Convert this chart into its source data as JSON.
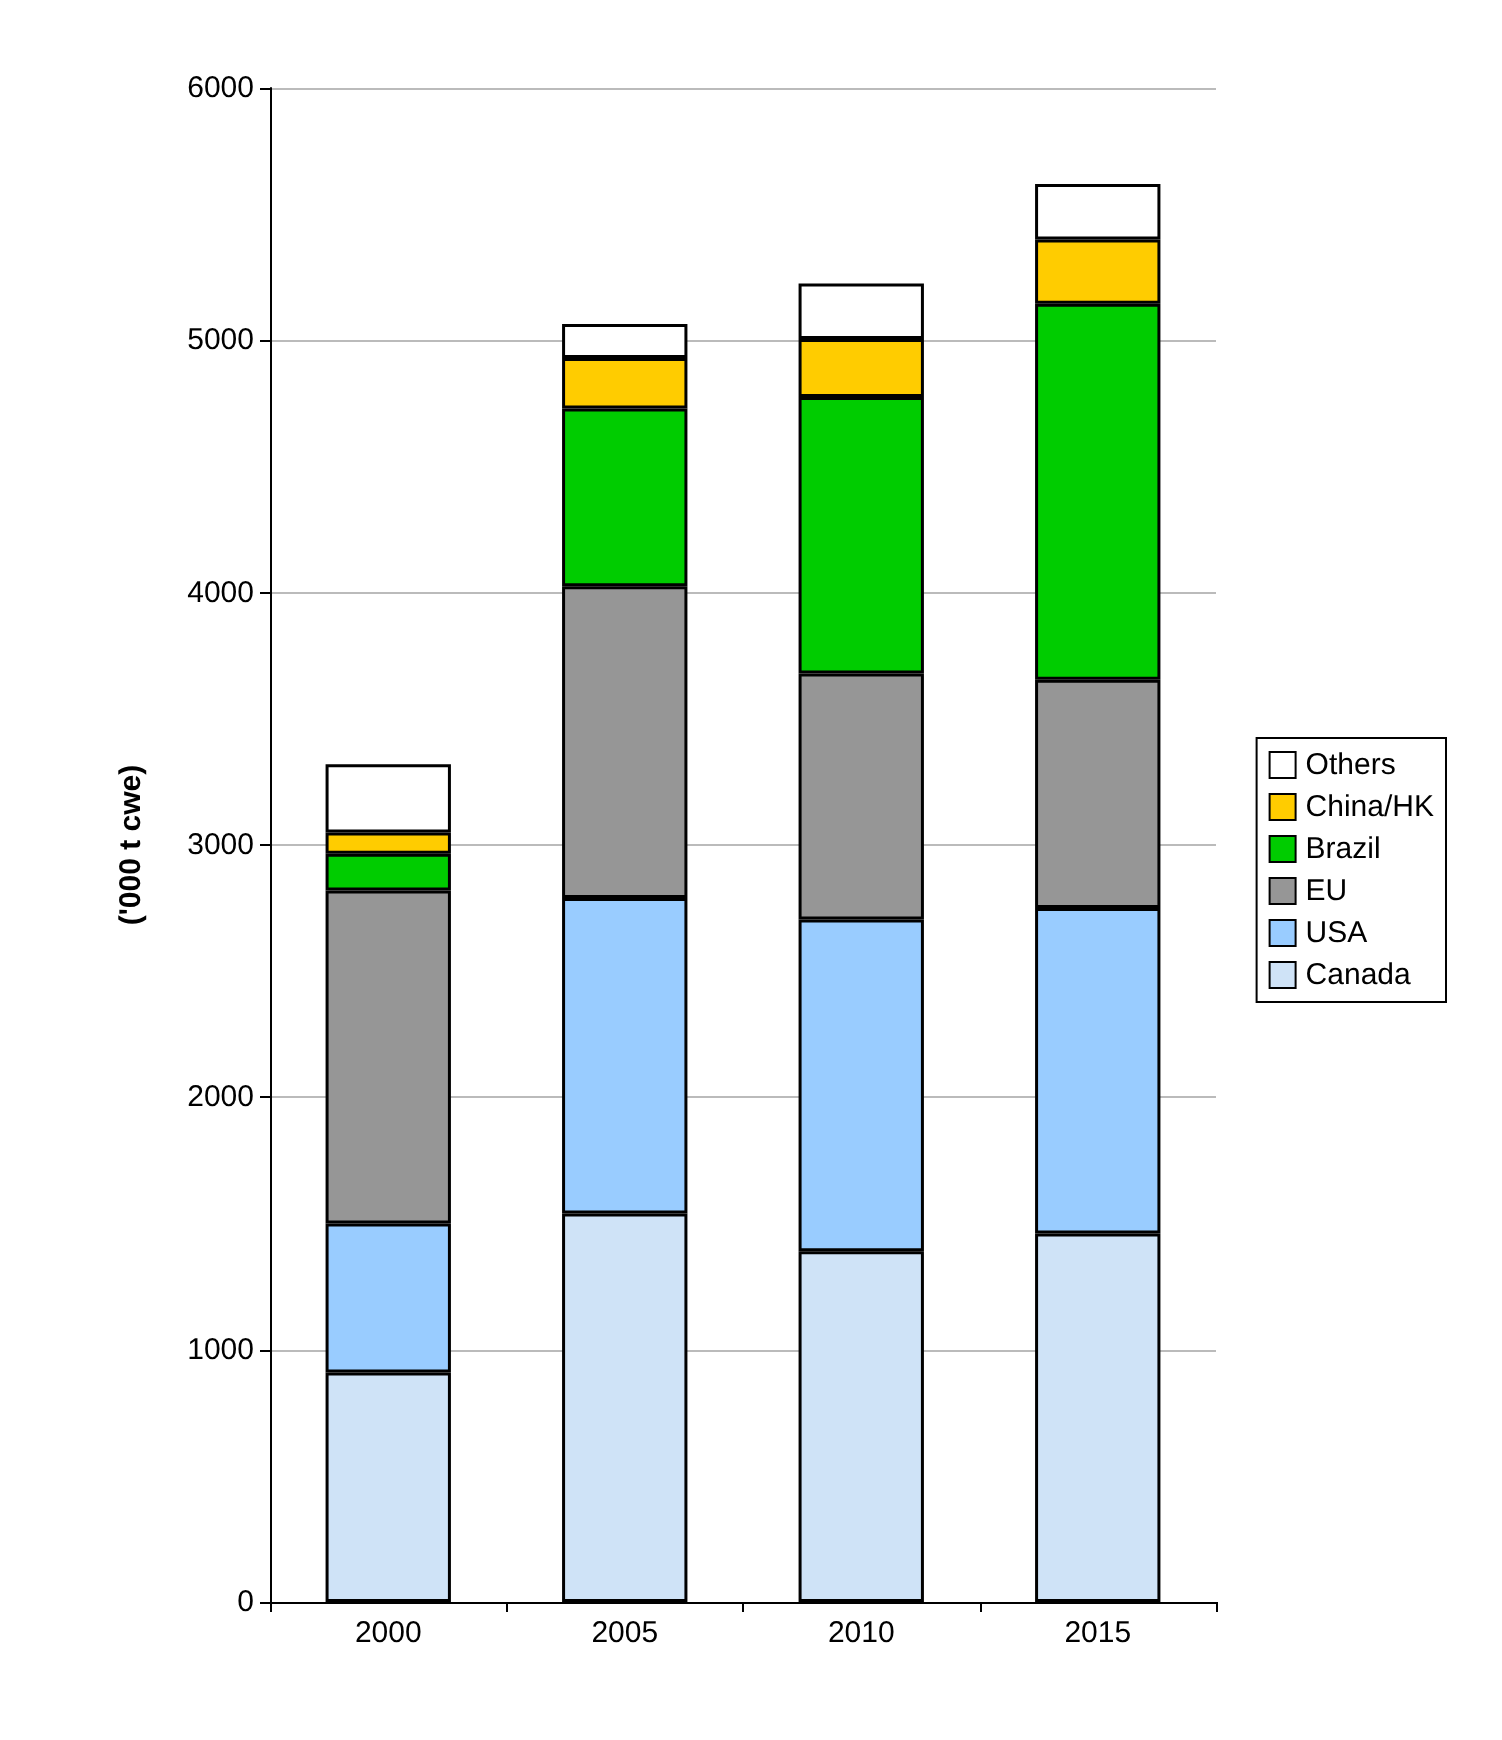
{
  "chart_data": {
    "type": "bar",
    "stacked": true,
    "ylabel": "('000 t cwe)",
    "categories": [
      "2000",
      "2005",
      "2010",
      "2015"
    ],
    "series": [
      {
        "name": "Canada",
        "color": "#cfe3f7",
        "values": [
          910,
          1540,
          1390,
          1460
        ]
      },
      {
        "name": "USA",
        "color": "#99ccff",
        "values": [
          590,
          1250,
          1315,
          1290
        ]
      },
      {
        "name": "EU",
        "color": "#969696",
        "values": [
          1320,
          1235,
          975,
          905
        ]
      },
      {
        "name": "Brazil",
        "color": "#00cc00",
        "values": [
          145,
          705,
          1095,
          1490
        ]
      },
      {
        "name": "China/HK",
        "color": "#ffcc00",
        "values": [
          85,
          200,
          230,
          255
        ]
      },
      {
        "name": "Others",
        "color": "#ffffff",
        "values": [
          270,
          135,
          220,
          220
        ]
      }
    ],
    "ylim": [
      0,
      6000
    ],
    "yticks": [
      0,
      1000,
      2000,
      3000,
      4000,
      5000,
      6000
    ],
    "grid": "y",
    "legend": "right"
  }
}
